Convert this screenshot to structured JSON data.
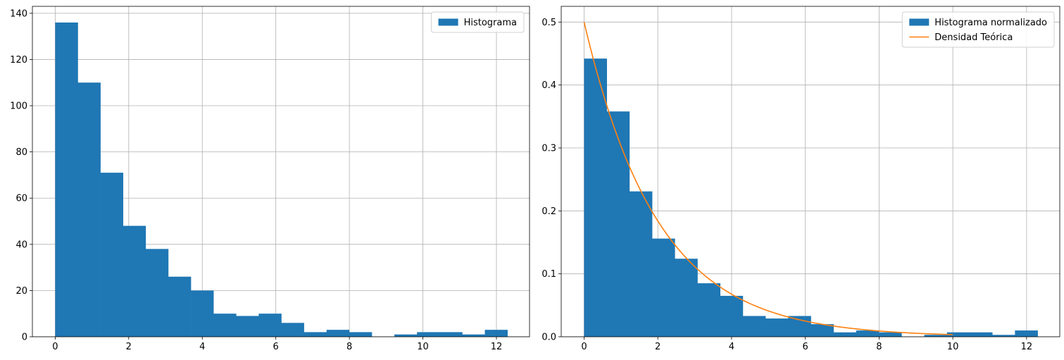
{
  "chart_data": [
    {
      "type": "bar",
      "title": "",
      "xlabel": "",
      "ylabel": "",
      "xlim": [
        -0.62,
        12.9
      ],
      "ylim": [
        0,
        143
      ],
      "xticks": [
        0,
        2,
        4,
        6,
        8,
        10,
        12
      ],
      "xtick_labels": [
        "0",
        "2",
        "4",
        "6",
        "8",
        "10",
        "12"
      ],
      "yticks": [
        0,
        20,
        40,
        60,
        80,
        100,
        120,
        140
      ],
      "ytick_labels": [
        "0",
        "20",
        "40",
        "60",
        "80",
        "100",
        "120",
        "140"
      ],
      "grid": true,
      "legend_position": "top-right",
      "bin_start": 0,
      "bin_width": 0.615,
      "series": [
        {
          "name": "Histograma",
          "color": "#1f77b4",
          "values": [
            136,
            110,
            71,
            48,
            38,
            26,
            20,
            10,
            9,
            10,
            6,
            2,
            3,
            2,
            0,
            1,
            2,
            2,
            1,
            3
          ]
        }
      ]
    },
    {
      "type": "bar",
      "title": "",
      "xlabel": "",
      "ylabel": "",
      "xlim": [
        -0.62,
        12.9
      ],
      "ylim": [
        0,
        0.525
      ],
      "xticks": [
        0,
        2,
        4,
        6,
        8,
        10,
        12
      ],
      "xtick_labels": [
        "0",
        "2",
        "4",
        "6",
        "8",
        "10",
        "12"
      ],
      "yticks": [
        0,
        0.1,
        0.2,
        0.3,
        0.4,
        0.5
      ],
      "ytick_labels": [
        "0.0",
        "0.1",
        "0.2",
        "0.3",
        "0.4",
        "0.5"
      ],
      "grid": true,
      "legend_position": "top-right",
      "bin_start": 0,
      "bin_width": 0.615,
      "series": [
        {
          "name": "Histograma normalizado",
          "type": "bar",
          "color": "#1f77b4",
          "values": [
            0.442,
            0.358,
            0.231,
            0.156,
            0.124,
            0.085,
            0.065,
            0.033,
            0.029,
            0.033,
            0.02,
            0.007,
            0.01,
            0.007,
            0.0,
            0.003,
            0.007,
            0.007,
            0.003,
            0.01
          ]
        },
        {
          "name": "Densidad Teórica",
          "type": "line",
          "color": "#ff7f0e",
          "function": "0.5*exp(-0.5*x)",
          "x": [
            0,
            0.5,
            1,
            1.5,
            2,
            2.5,
            3,
            3.5,
            4,
            4.5,
            5,
            5.5,
            6,
            6.5,
            7,
            7.5,
            8,
            8.5,
            9,
            9.5,
            10
          ],
          "y": [
            0.5,
            0.3894,
            0.3033,
            0.2362,
            0.1839,
            0.1433,
            0.1116,
            0.0869,
            0.0677,
            0.0527,
            0.041,
            0.032,
            0.0249,
            0.0194,
            0.0151,
            0.0118,
            0.0092,
            0.0071,
            0.0056,
            0.0043,
            0.0034
          ]
        }
      ]
    }
  ]
}
